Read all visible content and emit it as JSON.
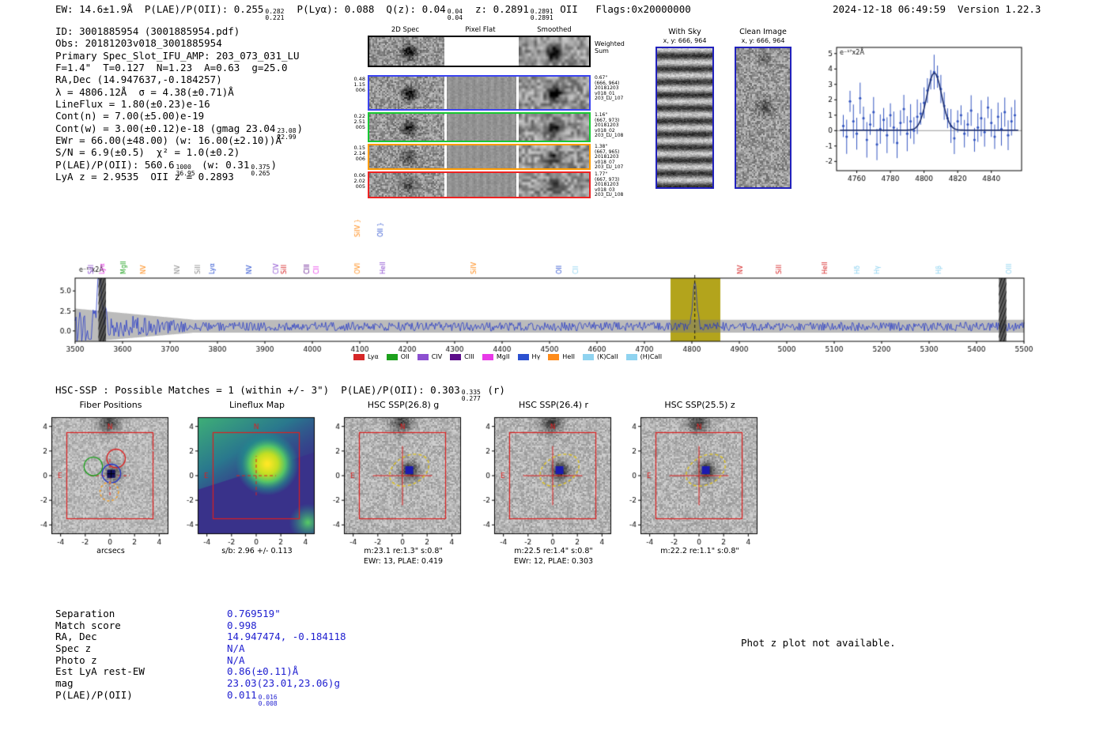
{
  "report": {
    "header": {
      "left_segments": [
        {
          "t": "EW: 14.6±1.9Å  P(LAE)/P(OII): 0.255"
        },
        {
          "hi": "0.282",
          "lo": "0.221"
        },
        {
          "t": "  P(Lyα): 0.088  Q(z): 0.04"
        },
        {
          "hi": "0.04",
          "lo": "0.04"
        },
        {
          "t": "  z: 0.2891"
        },
        {
          "hi": "0.2891",
          "lo": "0.2891"
        },
        {
          "t": " OII   Flags:0x20000000"
        }
      ],
      "right": "2024-12-18 06:49:59  Version 1.22.3"
    },
    "info_lines": [
      [
        {
          "t": "ID: 3001885954 (3001885954.pdf)"
        }
      ],
      [
        {
          "t": "Obs: 20181203v018_3001885954"
        }
      ],
      [
        {
          "t": "Primary Spec_Slot_IFU_AMP: 203_073_031_LU"
        }
      ],
      [
        {
          "t": "F=1.4\"  T=0.127  N=1.23  A=0.63  g=25.0"
        }
      ],
      [
        {
          "t": "RA,Dec (14.947637,-0.184257)"
        }
      ],
      [
        {
          "t": "λ = 4806.12Å  σ = 4.38(±0.71)Å"
        }
      ],
      [
        {
          "t": "LineFlux = 1.80(±0.23)e-16"
        }
      ],
      [
        {
          "t": "Cont(n) = 7.00(±5.00)e-19"
        }
      ],
      [
        {
          "t": "Cont(w) = 3.00(±0.12)e-18 (gmag 23.04"
        },
        {
          "hi": "23.08",
          "lo": "22.99"
        },
        {
          "t": ")"
        }
      ],
      [
        {
          "t": "EWr = 66.00(±48.00) (w: 16.00(±2.10))Å"
        }
      ],
      [
        {
          "t": "S/N = 6.9(±0.5)  χ² = 1.0(±0.2)"
        }
      ],
      [
        {
          "t": "P(LAE)/P(OII): 560.6"
        },
        {
          "hi": "1000",
          "lo": "36.95"
        },
        {
          "t": " (w: 0.31"
        },
        {
          "hi": "0.375",
          "lo": "0.265"
        },
        {
          "t": ")"
        }
      ],
      [
        {
          "t": "LyA z = 2.9535  OII z = 0.2893"
        }
      ]
    ],
    "spec2d": {
      "col_titles": [
        "2D Spec",
        "Pixel Flat",
        "Smoothed"
      ],
      "rows": [
        {
          "border": "#000000",
          "left_label": [],
          "right_label": [
            "Weighted",
            "Sum"
          ]
        },
        {
          "border": "#3b44f0",
          "left_label": [
            "0.48",
            "1.15",
            "006"
          ],
          "right_label": [
            "0.67\"",
            "(666, 964)",
            "20181203",
            "v018_01",
            "203_LU_107"
          ]
        },
        {
          "border": "#17c832",
          "left_label": [
            "0.22",
            "2.51",
            "005"
          ],
          "right_label": [
            "1.16\"",
            "(667, 973)",
            "20181203",
            "v018_02",
            "203_LU_108"
          ]
        },
        {
          "border": "#ff9b00",
          "left_label": [
            "0.15",
            "2.14",
            "006"
          ],
          "right_label": [
            "1.38\"",
            "(667, 965)",
            "20181203",
            "v018_07",
            "203_LU_107"
          ]
        },
        {
          "border": "#ee2222",
          "left_label": [
            "0.06",
            "2.02",
            "005"
          ],
          "right_label": [
            "1.77\"",
            "(667, 973)",
            "20181203",
            "v018_03",
            "203_LU_108"
          ]
        }
      ]
    },
    "cutout_images": {
      "with_sky": {
        "title": "With Sky",
        "subtitle": "x, y: 666, 964"
      },
      "clean": {
        "title": "Clean Image",
        "subtitle": "x, y: 666, 964"
      }
    },
    "hsc_header_segments": [
      {
        "t": "HSC-SSP : Possible Matches = 1 (within +/- 3\")  P(LAE)/P(OII): 0.303"
      },
      {
        "hi": "0.335",
        "lo": "0.277"
      },
      {
        "t": " (r)"
      }
    ],
    "cutout_axes": {
      "xticks": [
        -4,
        -2,
        0,
        2,
        4
      ],
      "yticks": [
        4,
        2,
        0,
        -2,
        -4
      ],
      "range_arcsec": 9.5
    },
    "compass": {
      "north": "N",
      "east": "E"
    },
    "cutouts": [
      {
        "kind": "fiber",
        "title": "Fiber Positions",
        "captions": [
          "arcsecs"
        ]
      },
      {
        "kind": "lineflux",
        "title": "Lineflux Map",
        "captions": [
          "s/b: 2.96 +/- 0.113"
        ]
      },
      {
        "kind": "hsc",
        "title": "HSC SSP(26.8) g",
        "captions": [
          "m:23.1 re:1.3\" s:0.8\"",
          "EWr: 13, PLAE: 0.419"
        ]
      },
      {
        "kind": "hsc",
        "title": "HSC SSP(26.4) r",
        "captions": [
          "m:22.5 re:1.4\" s:0.8\"",
          "EWr: 12, PLAE: 0.303"
        ]
      },
      {
        "kind": "hsc",
        "title": "HSC SSP(25.5) z",
        "captions": [
          "m:22.2 re:1.1\" s:0.8\""
        ]
      }
    ],
    "match_table": {
      "rows": [
        {
          "label": "Separation",
          "value_segments": [
            {
              "t": "0.769519\""
            }
          ]
        },
        {
          "label": "Match score",
          "value_segments": [
            {
              "t": "0.998"
            }
          ]
        },
        {
          "label": "RA, Dec",
          "value_segments": [
            {
              "t": "14.947474, -0.184118"
            }
          ]
        },
        {
          "label": "Spec z",
          "value_segments": [
            {
              "t": "N/A"
            }
          ]
        },
        {
          "label": "Photo z",
          "value_segments": [
            {
              "t": "N/A"
            }
          ]
        },
        {
          "label": "Est LyA rest-EW",
          "value_segments": [
            {
              "t": "0.86(±0.11)Å"
            }
          ]
        },
        {
          "label": "mag",
          "value_segments": [
            {
              "t": "23.03(23.01,23.06)g"
            }
          ]
        },
        {
          "label": "P(LAE)/P(OII)",
          "value_segments": [
            {
              "t": "0.011"
            },
            {
              "hi": "0.016",
              "lo": "0.008"
            }
          ]
        }
      ]
    },
    "phot_z_note": "Phot z plot not available."
  },
  "chart_data": [
    {
      "id": "line_fit",
      "type": "scatter",
      "title": "",
      "annotation": "e⁻¹⁷x2Å",
      "xlim": [
        4748,
        4858
      ],
      "ylim": [
        -2.6,
        5.4
      ],
      "xticks": [
        4760,
        4780,
        4800,
        4820,
        4840
      ],
      "yticks": [
        5,
        4,
        3,
        2,
        1,
        0,
        -1,
        -2
      ],
      "x": [
        4752,
        4754,
        4756,
        4758,
        4760,
        4762,
        4764,
        4766,
        4768,
        4770,
        4772,
        4774,
        4776,
        4778,
        4780,
        4782,
        4784,
        4786,
        4788,
        4790,
        4792,
        4794,
        4796,
        4798,
        4800,
        4802,
        4804,
        4806,
        4808,
        4810,
        4812,
        4814,
        4816,
        4818,
        4820,
        4822,
        4824,
        4826,
        4828,
        4830,
        4832,
        4834,
        4836,
        4838,
        4840,
        4842,
        4844,
        4846,
        4848,
        4850,
        4852,
        4854
      ],
      "y": [
        0.3,
        -0.4,
        1.9,
        0.6,
        -0.2,
        2.1,
        0.8,
        -0.6,
        0.4,
        1.2,
        -0.9,
        0.1,
        0.7,
        -0.3,
        1.0,
        0.2,
        -0.8,
        0.5,
        1.4,
        -0.2,
        0.6,
        0.0,
        0.9,
        1.1,
        1.8,
        2.6,
        3.3,
        3.8,
        3.5,
        2.7,
        1.6,
        0.8,
        0.3,
        -0.5,
        0.6,
        1.0,
        -0.2,
        0.4,
        1.3,
        -0.6,
        0.2,
        0.8,
        -0.1,
        1.5,
        0.5,
        -0.4,
        0.9,
        0.1,
        1.2,
        -0.3,
        0.6,
        1.0
      ],
      "fit": {
        "type": "gaussian",
        "center": 4806.12,
        "sigma": 4.38,
        "amplitude": 3.72,
        "baseline": 0.03
      }
    },
    {
      "id": "full_spectrum",
      "type": "line",
      "title": "",
      "annotation": "e⁻¹⁷x2Å",
      "xlim": [
        3500,
        5500
      ],
      "ylim": [
        -1.3,
        6.6
      ],
      "xticks": [
        3500,
        3600,
        3700,
        3800,
        3900,
        4000,
        4100,
        4200,
        4300,
        4400,
        4500,
        4600,
        4700,
        4800,
        4900,
        5000,
        5100,
        5200,
        5300,
        5400,
        5500
      ],
      "yticks": [
        0.0,
        2.5,
        5.0
      ],
      "continuum": 0.55,
      "noise_sigma": 0.55,
      "blue_end": {
        "until": 3750,
        "extra_noise": 1.5,
        "extra_err": 1.4
      },
      "spike": {
        "center": 3552,
        "sigma": 6,
        "peak": 6.0
      },
      "emission_line": {
        "center": 4806.12,
        "sigma": 4.38,
        "peak": 5.05
      },
      "error_band_half_width": 0.85,
      "highlight_band": {
        "x0": 4755,
        "x1": 4860,
        "color": "#b3a41c"
      },
      "marker_line_x": 4806.12,
      "hatch_bands": [
        [
          3549,
          3565
        ],
        [
          5447,
          5463
        ]
      ],
      "seed": 1375,
      "line_labels": [
        {
          "label": "SiII",
          "x": 3535,
          "color": "#8c4fd0"
        },
        {
          "label": "Lyα",
          "x": 3558,
          "color": "#e83ae8"
        },
        {
          "label": "MgII",
          "x": 3603,
          "color": "#1ca01c"
        },
        {
          "label": "NV",
          "x": 3645,
          "color": "#ff8c1a"
        },
        {
          "label": "NV",
          "x": 3716,
          "color": "#8c8c8c"
        },
        {
          "label": "SiII",
          "x": 3760,
          "color": "#8c8c8c"
        },
        {
          "label": "Lyα",
          "x": 3790,
          "color": "#2b50d0"
        },
        {
          "label": "NV",
          "x": 3868,
          "color": "#2b50d0"
        },
        {
          "label": "CIV",
          "x": 3925,
          "color": "#8c4fd0"
        },
        {
          "label": "SiII",
          "x": 3942,
          "color": "#d62728"
        },
        {
          "label": "CIII",
          "x": 3990,
          "color": "#5c0d8a"
        },
        {
          "label": "CII",
          "x": 4010,
          "color": "#e83ae8"
        },
        {
          "label": "OVI",
          "x": 4097,
          "color": "#ff8c1a"
        },
        {
          "label": "HeII",
          "x": 4150,
          "color": "#8c4fd0"
        },
        {
          "label": "SiIV",
          "x": 4342,
          "color": "#ff8c1a"
        },
        {
          "label": "OII",
          "x": 4522,
          "color": "#2b50d0"
        },
        {
          "label": "CII",
          "x": 4556,
          "color": "#8fd3f0"
        },
        {
          "label": "NV",
          "x": 4903,
          "color": "#d62728"
        },
        {
          "label": "SiII",
          "x": 4985,
          "color": "#d62728"
        },
        {
          "label": "HeII",
          "x": 5082,
          "color": "#d62728"
        },
        {
          "label": "Hδ",
          "x": 5150,
          "color": "#8fd3f0"
        },
        {
          "label": "Hγ",
          "x": 5192,
          "color": "#8fd3f0"
        },
        {
          "label": "Hβ",
          "x": 5322,
          "color": "#8fd3f0"
        },
        {
          "label": "OIII",
          "x": 5470,
          "color": "#8fd3f0"
        }
      ],
      "raised_labels": [
        {
          "label": "SiIV }",
          "x": 4097,
          "color": "#ff8c1a"
        },
        {
          "label": "OII }",
          "x": 4145,
          "color": "#2b50d0"
        }
      ],
      "legend": [
        {
          "label": "Lyα",
          "color": "#d62728"
        },
        {
          "label": "OII",
          "color": "#1ca01c"
        },
        {
          "label": "CIV",
          "color": "#8c4fd0"
        },
        {
          "label": "CIII",
          "color": "#5c0d8a"
        },
        {
          "label": "MgII",
          "color": "#e83ae8"
        },
        {
          "label": "Hγ",
          "color": "#2b50d0"
        },
        {
          "label": "HeII",
          "color": "#ff8c1a"
        },
        {
          "label": "(K)CaII",
          "color": "#8fd3f0"
        },
        {
          "label": "(H)CaII",
          "color": "#8fd3f0"
        }
      ]
    }
  ]
}
